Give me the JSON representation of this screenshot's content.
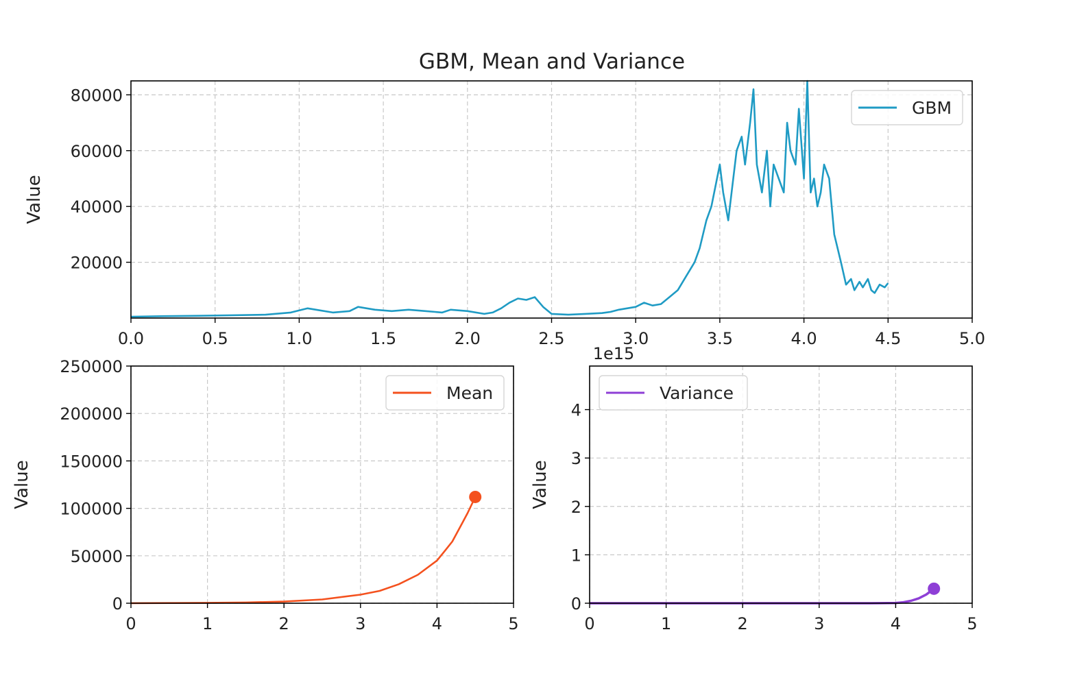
{
  "chart_data": [
    {
      "id": "gbm",
      "type": "line",
      "title": "GBM, Mean and Variance",
      "xlabel": "",
      "ylabel": "Value",
      "xlim": [
        0.0,
        5.0
      ],
      "ylim": [
        0,
        85000
      ],
      "xticks": [
        0.0,
        0.5,
        1.0,
        1.5,
        2.0,
        2.5,
        3.0,
        3.5,
        4.0,
        4.5,
        5.0
      ],
      "xtick_labels": [
        "0.0",
        "0.5",
        "1.0",
        "1.5",
        "2.0",
        "2.5",
        "3.0",
        "3.5",
        "4.0",
        "4.5",
        "5.0"
      ],
      "yticks": [
        20000,
        40000,
        60000,
        80000
      ],
      "ytick_labels": [
        "20000",
        "40000",
        "60000",
        "80000"
      ],
      "grid": true,
      "legend": "top-right",
      "series": [
        {
          "name": "GBM",
          "color": "#1f9bc4",
          "x": [
            0.0,
            0.2,
            0.4,
            0.6,
            0.8,
            0.95,
            1.05,
            1.1,
            1.2,
            1.3,
            1.35,
            1.45,
            1.55,
            1.65,
            1.75,
            1.85,
            1.9,
            2.0,
            2.1,
            2.15,
            2.2,
            2.25,
            2.3,
            2.35,
            2.4,
            2.45,
            2.5,
            2.6,
            2.7,
            2.8,
            2.85,
            2.9,
            3.0,
            3.05,
            3.1,
            3.15,
            3.2,
            3.25,
            3.3,
            3.35,
            3.38,
            3.42,
            3.45,
            3.5,
            3.52,
            3.55,
            3.58,
            3.6,
            3.63,
            3.65,
            3.68,
            3.7,
            3.72,
            3.75,
            3.78,
            3.8,
            3.82,
            3.85,
            3.88,
            3.9,
            3.92,
            3.95,
            3.97,
            4.0,
            4.02,
            4.04,
            4.06,
            4.08,
            4.1,
            4.12,
            4.15,
            4.18,
            4.2,
            4.22,
            4.25,
            4.28,
            4.3,
            4.33,
            4.35,
            4.38,
            4.4,
            4.42,
            4.45,
            4.48,
            4.5
          ],
          "y": [
            500,
            700,
            800,
            1000,
            1200,
            2000,
            3500,
            3000,
            2000,
            2500,
            4000,
            3000,
            2500,
            3000,
            2500,
            2000,
            3000,
            2500,
            1500,
            2000,
            3500,
            5500,
            7000,
            6500,
            7500,
            4000,
            1500,
            1200,
            1500,
            1800,
            2200,
            3000,
            4000,
            5500,
            4500,
            5000,
            7500,
            10000,
            15000,
            20000,
            25000,
            35000,
            40000,
            55000,
            45000,
            35000,
            50000,
            60000,
            65000,
            55000,
            70000,
            82000,
            55000,
            45000,
            60000,
            40000,
            55000,
            50000,
            45000,
            70000,
            60000,
            55000,
            75000,
            50000,
            85000,
            45000,
            50000,
            40000,
            45000,
            55000,
            50000,
            30000,
            25000,
            20000,
            12000,
            14000,
            10000,
            13000,
            11000,
            14000,
            10000,
            9000,
            12000,
            11000,
            12500
          ]
        }
      ]
    },
    {
      "id": "mean",
      "type": "line",
      "title": "",
      "xlabel": "",
      "ylabel": "Value",
      "xlim": [
        0,
        5
      ],
      "ylim": [
        0,
        250000
      ],
      "xticks": [
        0,
        1,
        2,
        3,
        4,
        5
      ],
      "xtick_labels": [
        "0",
        "1",
        "2",
        "3",
        "4",
        "5"
      ],
      "yticks": [
        0,
        50000,
        100000,
        150000,
        200000,
        250000
      ],
      "ytick_labels": [
        "0",
        "50000",
        "100000",
        "150000",
        "200000",
        "250000"
      ],
      "grid": true,
      "legend": "top-right",
      "series": [
        {
          "name": "Mean",
          "color": "#f4511e",
          "x": [
            0.0,
            0.5,
            1.0,
            1.5,
            2.0,
            2.5,
            3.0,
            3.25,
            3.5,
            3.75,
            4.0,
            4.1,
            4.2,
            4.3,
            4.4,
            4.5
          ],
          "y": [
            100,
            200,
            400,
            800,
            1700,
            4000,
            9000,
            13000,
            20000,
            30000,
            45000,
            55000,
            65000,
            80000,
            95000,
            112000
          ],
          "end_marker": {
            "x": 4.5,
            "y": 112000
          }
        }
      ]
    },
    {
      "id": "variance",
      "type": "line",
      "title": "",
      "xlabel": "",
      "ylabel": "Value",
      "offset_label": "1e15",
      "xlim": [
        0,
        5
      ],
      "ylim": [
        0,
        4.9
      ],
      "xticks": [
        0,
        1,
        2,
        3,
        4,
        5
      ],
      "xtick_labels": [
        "0",
        "1",
        "2",
        "3",
        "4",
        "5"
      ],
      "yticks": [
        0,
        1,
        2,
        3,
        4
      ],
      "ytick_labels": [
        "0",
        "1",
        "2",
        "3",
        "4"
      ],
      "grid": true,
      "legend": "top-left",
      "series": [
        {
          "name": "Variance",
          "color": "#8e3fd6",
          "x": [
            0.0,
            1.0,
            2.0,
            3.0,
            3.5,
            3.8,
            4.0,
            4.1,
            4.2,
            4.3,
            4.4,
            4.5
          ],
          "y": [
            0,
            0,
            0,
            0,
            0.0002,
            0.001,
            0.005,
            0.02,
            0.05,
            0.1,
            0.18,
            0.3
          ],
          "end_marker": {
            "x": 4.5,
            "y": 0.3
          }
        }
      ]
    }
  ]
}
